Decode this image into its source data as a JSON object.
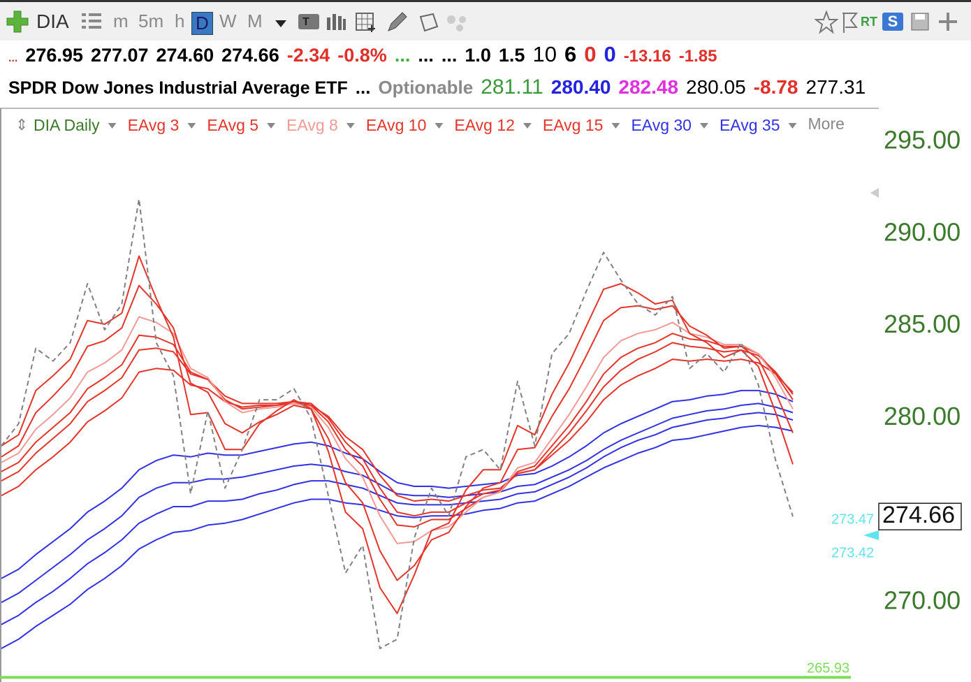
{
  "toolbar": {
    "symbol": "DIA",
    "intervals": [
      "m",
      "5m",
      "h",
      "D",
      "W",
      "M"
    ],
    "rt": "RT",
    "s": "S"
  },
  "quote": {
    "row1": [
      "...",
      "276.95",
      "277.07",
      "274.60",
      "274.66",
      "-2.34",
      "-0.8%",
      "...",
      "...",
      "...",
      "1.0",
      "1.5",
      "10",
      "6",
      "0",
      "0",
      "-13.16",
      "-1.85"
    ],
    "row2": [
      "SPDR Dow Jones Industrial Average ETF",
      "...",
      "Optionable",
      "281.11",
      "280.40",
      "282.48",
      "280.05",
      "-8.78",
      "277.31"
    ]
  },
  "chart_data": {
    "type": "line",
    "categories": [
      null,
      null,
      null,
      null,
      null,
      null,
      null,
      null,
      null,
      null,
      null,
      null,
      null,
      null,
      null,
      null,
      null,
      null,
      null,
      null,
      null,
      null,
      null,
      null,
      null,
      null,
      null,
      null,
      null,
      null,
      null,
      null,
      null,
      null,
      null,
      null,
      null,
      null,
      null,
      null,
      null,
      null,
      null,
      null,
      null,
      null,
      null
    ],
    "series": [
      {
        "name": "DIA Daily",
        "color": "#808080",
        "dashed": true,
        "values": [
          278.5,
          279.7,
          283.8,
          283.1,
          284.1,
          287.3,
          284.8,
          286.2,
          291.9,
          284.1,
          282.3,
          275.9,
          280.4,
          276.2,
          278.3,
          281.0,
          281.0,
          281.6,
          280.0,
          275.8,
          271.6,
          273.1,
          267.5,
          268.0,
          273.5,
          276.2,
          274.7,
          277.9,
          278.3,
          277.2,
          282.0,
          278.5,
          283.5,
          284.6,
          286.9,
          289.0,
          287.5,
          286.2,
          285.6,
          286.6,
          282.7,
          283.5,
          282.5,
          284.1,
          281.8,
          277.7,
          274.66
        ]
      },
      {
        "name": "EAvg 3",
        "color": "#e5342a",
        "values": [
          278.5,
          279.1,
          281.5,
          282.3,
          283.2,
          285.3,
          285.1,
          285.7,
          288.8,
          286.5,
          284.4,
          280.2,
          280.3,
          278.3,
          278.3,
          279.7,
          280.4,
          281.0,
          280.5,
          278.2,
          274.9,
          274.0,
          270.8,
          269.4,
          271.5,
          273.9,
          274.3,
          276.1,
          277.2,
          277.2,
          279.6,
          279.1,
          281.3,
          283.0,
          285.0,
          287.0,
          287.3,
          286.8,
          286.2,
          286.4,
          284.6,
          284.1,
          283.3,
          283.7,
          282.8,
          280.3,
          277.5
        ]
      },
      {
        "name": "EAvg 5",
        "color": "#e5342a",
        "values": [
          277.9,
          278.5,
          280.3,
          281.2,
          282.2,
          283.9,
          284.2,
          284.9,
          287.2,
          286.2,
          284.9,
          281.9,
          281.4,
          279.7,
          279.2,
          279.8,
          280.2,
          280.7,
          280.5,
          278.9,
          276.5,
          275.4,
          272.8,
          271.2,
          272.0,
          273.4,
          273.8,
          275.2,
          276.2,
          276.5,
          278.3,
          278.4,
          280.1,
          281.6,
          283.4,
          285.3,
          286.0,
          286.1,
          285.9,
          286.1,
          285.0,
          284.5,
          283.8,
          283.9,
          283.2,
          281.4,
          279.2
        ]
      },
      {
        "name": "EAvg 8",
        "color": "#f29a96",
        "values": [
          277.6,
          278.1,
          279.4,
          280.2,
          281.1,
          282.5,
          283.0,
          283.7,
          285.5,
          285.2,
          284.6,
          282.7,
          282.2,
          280.9,
          280.3,
          280.5,
          280.6,
          280.8,
          280.6,
          279.5,
          277.8,
          276.8,
          274.7,
          273.2,
          273.3,
          273.9,
          274.1,
          274.9,
          275.7,
          276.0,
          277.3,
          277.6,
          278.9,
          280.2,
          281.7,
          283.3,
          284.2,
          284.6,
          284.8,
          285.2,
          284.6,
          284.4,
          284.0,
          284.0,
          283.5,
          282.2,
          280.5
        ]
      },
      {
        "name": "EAvg 10",
        "color": "#e5342a",
        "values": [
          277.1,
          277.6,
          278.7,
          279.5,
          280.3,
          281.6,
          282.2,
          282.9,
          284.5,
          284.4,
          284.0,
          282.5,
          282.1,
          281.0,
          280.5,
          280.6,
          280.7,
          280.9,
          280.7,
          279.8,
          278.3,
          277.4,
          275.6,
          274.2,
          274.1,
          274.5,
          274.5,
          275.1,
          275.7,
          276.0,
          277.1,
          277.4,
          278.5,
          279.6,
          280.9,
          282.4,
          283.3,
          283.8,
          284.1,
          284.6,
          284.3,
          284.2,
          283.9,
          283.9,
          283.5,
          282.4,
          281.0
        ]
      },
      {
        "name": "EAvg 12",
        "color": "#e5342a",
        "values": [
          276.6,
          277.1,
          278.1,
          278.9,
          279.7,
          280.9,
          281.5,
          282.2,
          283.7,
          283.8,
          283.6,
          282.4,
          282.1,
          281.2,
          280.8,
          280.8,
          280.8,
          280.9,
          280.8,
          280.0,
          278.7,
          277.8,
          276.2,
          274.9,
          274.7,
          274.9,
          274.9,
          275.4,
          275.9,
          276.1,
          277.0,
          277.2,
          278.2,
          279.2,
          280.4,
          281.7,
          282.6,
          283.2,
          283.6,
          284.1,
          283.9,
          283.8,
          283.6,
          283.7,
          283.4,
          282.5,
          281.3
        ]
      },
      {
        "name": "EAvg 15",
        "color": "#e5342a",
        "values": [
          275.8,
          276.3,
          277.2,
          277.9,
          278.7,
          279.8,
          280.4,
          281.1,
          282.5,
          282.7,
          282.6,
          281.8,
          281.6,
          280.9,
          280.6,
          280.7,
          280.7,
          280.8,
          280.7,
          280.1,
          279.0,
          278.3,
          276.9,
          275.8,
          275.5,
          275.6,
          275.5,
          275.8,
          276.1,
          276.2,
          277.0,
          277.2,
          278.0,
          278.8,
          279.8,
          281.0,
          281.8,
          282.3,
          282.7,
          283.2,
          283.1,
          283.2,
          283.1,
          283.2,
          283.0,
          282.4,
          281.4
        ]
      },
      {
        "name": "EAvg 30",
        "color": "#3131e6",
        "values": [
          271.3,
          271.8,
          272.6,
          273.3,
          274.0,
          274.9,
          275.5,
          276.2,
          277.2,
          277.7,
          278.0,
          277.9,
          278.1,
          278.0,
          278.0,
          278.2,
          278.4,
          278.6,
          278.7,
          278.5,
          278.1,
          277.8,
          277.1,
          276.5,
          276.3,
          276.3,
          276.2,
          276.3,
          276.4,
          276.5,
          276.9,
          277.0,
          277.4,
          277.9,
          278.5,
          279.2,
          279.7,
          280.1,
          280.5,
          280.9,
          281.0,
          281.2,
          281.3,
          281.5,
          281.5,
          281.3,
          280.9
        ]
      },
      {
        "name": "EAvg 35",
        "color": "#3131e6",
        "values": [
          270.0,
          270.5,
          271.2,
          271.9,
          272.6,
          273.4,
          274.0,
          274.7,
          275.7,
          276.2,
          276.5,
          276.5,
          276.7,
          276.7,
          276.8,
          277.0,
          277.2,
          277.4,
          277.5,
          277.4,
          277.1,
          276.9,
          276.4,
          275.9,
          275.8,
          275.8,
          275.7,
          275.8,
          275.9,
          276.0,
          276.3,
          276.4,
          276.8,
          277.2,
          277.7,
          278.3,
          278.8,
          279.2,
          279.6,
          280.0,
          280.2,
          280.4,
          280.5,
          280.7,
          280.8,
          280.6,
          280.3
        ]
      },
      {
        "color": "#3131e6",
        "values": [
          268.8,
          269.3,
          270.0,
          270.6,
          271.3,
          272.1,
          272.7,
          273.4,
          274.3,
          274.8,
          275.2,
          275.2,
          275.5,
          275.5,
          275.6,
          275.9,
          276.1,
          276.4,
          276.6,
          276.6,
          276.4,
          276.2,
          275.8,
          275.4,
          275.3,
          275.3,
          275.3,
          275.4,
          275.5,
          275.6,
          275.9,
          276.0,
          276.4,
          276.8,
          277.3,
          277.9,
          278.4,
          278.8,
          279.1,
          279.5,
          279.7,
          279.9,
          280.0,
          280.2,
          280.3,
          280.2,
          279.9
        ]
      },
      {
        "color": "#3131e6",
        "values": [
          267.5,
          268.0,
          268.7,
          269.3,
          269.9,
          270.7,
          271.3,
          272.0,
          272.9,
          273.4,
          273.8,
          273.9,
          274.2,
          274.3,
          274.5,
          274.8,
          275.1,
          275.4,
          275.6,
          275.6,
          275.4,
          275.3,
          275.0,
          274.7,
          274.6,
          274.7,
          274.7,
          274.8,
          275.0,
          275.1,
          275.4,
          275.5,
          275.9,
          276.3,
          276.8,
          277.3,
          277.7,
          278.1,
          278.4,
          278.8,
          278.9,
          279.1,
          279.3,
          279.5,
          279.6,
          279.5,
          279.3
        ]
      }
    ],
    "legend_more": "More",
    "legend": "top-left",
    "grid": false,
    "ylim": [
      265.68,
      296.82
    ],
    "yticks": [
      {
        "value": 270,
        "label": "270.00"
      },
      {
        "value": 280,
        "label": "280.00"
      },
      {
        "value": 285,
        "label": "285.00"
      },
      {
        "value": 290,
        "label": "290.00"
      },
      {
        "value": 295,
        "label": "295.00"
      }
    ],
    "last_price": {
      "value": 274.66,
      "label": "274.66"
    },
    "low_line": {
      "value": 265.93,
      "label": "265.93",
      "color": "#7ddc5a"
    },
    "price_labels": [
      "273.47",
      "273.42"
    ]
  }
}
